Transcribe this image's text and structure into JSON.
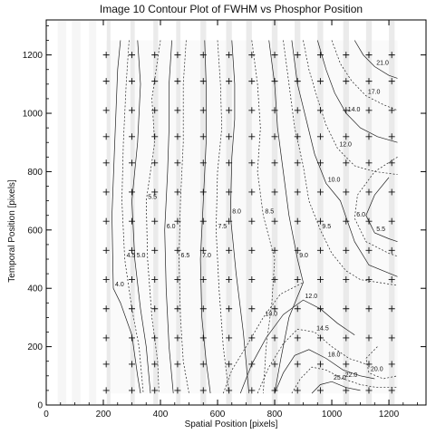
{
  "chart_data": {
    "type": "contour",
    "title": "Image 10 Contour Plot of FWHM vs Phosphor Position",
    "xlabel": "Spatial Position [pixels]",
    "ylabel": "Temporal Position [pixels]",
    "xlim": [
      0,
      1330
    ],
    "ylim": [
      0,
      1320
    ],
    "x_ticks": [
      0,
      200,
      400,
      600,
      800,
      1000,
      1200
    ],
    "y_ticks": [
      0,
      200,
      400,
      600,
      800,
      1000,
      1200
    ],
    "grid": false,
    "sample_x": [
      210,
      300,
      380,
      460,
      550,
      640,
      720,
      800,
      880,
      960,
      1050,
      1130,
      1210
    ],
    "sample_y": [
      50,
      140,
      230,
      330,
      430,
      530,
      630,
      730,
      830,
      920,
      1010,
      1110,
      1200
    ],
    "data_extent": {
      "x": [
        210,
        1230
      ],
      "y": [
        40,
        1250
      ]
    },
    "contour_levels": [
      {
        "level": "4.0",
        "style": "solid",
        "points": [
          [
            260,
            1250
          ],
          [
            250,
            1150
          ],
          [
            240,
            900
          ],
          [
            230,
            650
          ],
          [
            235,
            400
          ],
          [
            260,
            350
          ],
          [
            300,
            240
          ],
          [
            320,
            100
          ],
          [
            330,
            40
          ]
        ]
      },
      {
        "level": "4.5",
        "style": "dashed",
        "points": [
          [
            290,
            1250
          ],
          [
            280,
            1100
          ],
          [
            270,
            900
          ],
          [
            265,
            700
          ],
          [
            275,
            500
          ],
          [
            300,
            330
          ],
          [
            325,
            200
          ],
          [
            340,
            40
          ]
        ]
      },
      {
        "level": "5.0",
        "style": "solid",
        "points": [
          [
            320,
            1250
          ],
          [
            330,
            1100
          ],
          [
            320,
            900
          ],
          [
            300,
            700
          ],
          [
            310,
            500
          ],
          [
            330,
            330
          ],
          [
            350,
            200
          ],
          [
            365,
            40
          ]
        ]
      },
      {
        "level": "5.5",
        "style": "dashed",
        "points": [
          [
            400,
            1250
          ],
          [
            385,
            1150
          ],
          [
            370,
            1050
          ],
          [
            380,
            900
          ],
          [
            350,
            700
          ],
          [
            355,
            500
          ],
          [
            370,
            300
          ],
          [
            390,
            150
          ],
          [
            395,
            40
          ]
        ]
      },
      {
        "level": "6.0",
        "style": "solid",
        "points": [
          [
            440,
            1250
          ],
          [
            430,
            1100
          ],
          [
            430,
            950
          ],
          [
            425,
            800
          ],
          [
            415,
            600
          ],
          [
            420,
            400
          ],
          [
            430,
            200
          ],
          [
            445,
            40
          ]
        ]
      },
      {
        "level": "6.5",
        "style": "dashed",
        "points": [
          [
            490,
            1250
          ],
          [
            480,
            1100
          ],
          [
            480,
            900
          ],
          [
            470,
            700
          ],
          [
            465,
            500
          ],
          [
            470,
            300
          ],
          [
            480,
            150
          ],
          [
            500,
            40
          ]
        ]
      },
      {
        "level": "7.0",
        "style": "solid",
        "points": [
          [
            555,
            1250
          ],
          [
            560,
            1100
          ],
          [
            560,
            900
          ],
          [
            550,
            700
          ],
          [
            540,
            500
          ],
          [
            545,
            300
          ],
          [
            560,
            150
          ],
          [
            575,
            40
          ]
        ]
      },
      {
        "level": "7.5",
        "style": "dashed",
        "points": [
          [
            600,
            1250
          ],
          [
            610,
            1100
          ],
          [
            615,
            950
          ],
          [
            600,
            800
          ],
          [
            595,
            600
          ],
          [
            605,
            400
          ],
          [
            620,
            200
          ],
          [
            640,
            40
          ]
        ]
      },
      {
        "level": "8.0",
        "style": "solid",
        "points": [
          [
            650,
            1250
          ],
          [
            660,
            1100
          ],
          [
            660,
            980
          ],
          [
            650,
            850
          ],
          [
            645,
            650
          ],
          [
            665,
            450
          ],
          [
            690,
            250
          ],
          [
            710,
            40
          ]
        ]
      },
      {
        "level": "8.5",
        "style": "dashed",
        "points": [
          [
            720,
            1250
          ],
          [
            740,
            1100
          ],
          [
            750,
            950
          ],
          [
            740,
            800
          ],
          [
            760,
            650
          ],
          [
            800,
            500
          ],
          [
            790,
            350
          ],
          [
            770,
            200
          ],
          [
            760,
            40
          ]
        ]
      },
      {
        "level": "9.0",
        "style": "solid",
        "points": [
          [
            780,
            1250
          ],
          [
            800,
            1100
          ],
          [
            810,
            950
          ],
          [
            830,
            800
          ],
          [
            850,
            650
          ],
          [
            880,
            500
          ],
          [
            900,
            420
          ],
          [
            850,
            300
          ],
          [
            820,
            150
          ],
          [
            800,
            40
          ]
        ]
      },
      {
        "level": "9.5",
        "style": "dashed",
        "points": [
          [
            830,
            1250
          ],
          [
            850,
            1100
          ],
          [
            870,
            950
          ],
          [
            900,
            820
          ],
          [
            920,
            700
          ],
          [
            960,
            600
          ],
          [
            1000,
            520
          ],
          [
            1050,
            460
          ],
          [
            1100,
            430
          ],
          [
            1230,
            410
          ]
        ]
      },
      {
        "level": "10.0",
        "style": "solid",
        "points": [
          [
            860,
            1250
          ],
          [
            880,
            1100
          ],
          [
            910,
            980
          ],
          [
            940,
            860
          ],
          [
            980,
            760
          ],
          [
            1030,
            700
          ],
          [
            1080,
            560
          ],
          [
            1130,
            480
          ],
          [
            1230,
            440
          ]
        ]
      },
      {
        "level": "12.0",
        "style": "dashed",
        "points": [
          [
            900,
            1250
          ],
          [
            920,
            1150
          ],
          [
            950,
            1050
          ],
          [
            980,
            960
          ],
          [
            1020,
            880
          ],
          [
            1080,
            820
          ],
          [
            1150,
            800
          ],
          [
            1230,
            790
          ]
        ]
      },
      {
        "level": "14.0",
        "style": "solid",
        "points": [
          [
            950,
            1250
          ],
          [
            980,
            1150
          ],
          [
            1010,
            1070
          ],
          [
            1050,
            1000
          ],
          [
            1100,
            950
          ],
          [
            1160,
            920
          ],
          [
            1230,
            900
          ]
        ]
      },
      {
        "level": "17.0",
        "style": "dashed",
        "points": [
          [
            1000,
            1250
          ],
          [
            1030,
            1170
          ],
          [
            1070,
            1110
          ],
          [
            1120,
            1060
          ],
          [
            1180,
            1030
          ],
          [
            1230,
            1010
          ]
        ]
      },
      {
        "level": "21.0",
        "style": "solid",
        "points": [
          [
            1080,
            1250
          ],
          [
            1110,
            1200
          ],
          [
            1150,
            1160
          ],
          [
            1200,
            1130
          ],
          [
            1230,
            1120
          ]
        ]
      },
      {
        "level": "5.5",
        "style": "solid",
        "points": [
          [
            1200,
            780
          ],
          [
            1150,
            720
          ],
          [
            1120,
            650
          ],
          [
            1150,
            590
          ],
          [
            1200,
            570
          ],
          [
            1230,
            560
          ]
        ]
      },
      {
        "level": "6.0",
        "style": "dashed",
        "points": [
          [
            1230,
            850
          ],
          [
            1150,
            800
          ],
          [
            1090,
            720
          ],
          [
            1080,
            640
          ],
          [
            1120,
            560
          ],
          [
            1200,
            520
          ],
          [
            1230,
            510
          ]
        ]
      },
      {
        "level": "10.0",
        "style": "dashed",
        "points": [
          [
            620,
            40
          ],
          [
            650,
            120
          ],
          [
            700,
            200
          ],
          [
            760,
            300
          ],
          [
            820,
            380
          ],
          [
            900,
            420
          ]
        ]
      },
      {
        "level": "12.0",
        "style": "solid",
        "points": [
          [
            680,
            40
          ],
          [
            720,
            140
          ],
          [
            770,
            230
          ],
          [
            830,
            310
          ],
          [
            900,
            360
          ],
          [
            960,
            330
          ],
          [
            1020,
            280
          ],
          [
            1080,
            240
          ]
        ]
      },
      {
        "level": "14.5",
        "style": "dashed",
        "points": [
          [
            740,
            40
          ],
          [
            780,
            130
          ],
          [
            830,
            210
          ],
          [
            880,
            260
          ],
          [
            940,
            250
          ],
          [
            1000,
            200
          ],
          [
            1060,
            160
          ],
          [
            1120,
            140
          ]
        ]
      },
      {
        "level": "18.0",
        "style": "solid",
        "points": [
          [
            800,
            40
          ],
          [
            830,
            110
          ],
          [
            870,
            170
          ],
          [
            920,
            190
          ],
          [
            980,
            160
          ],
          [
            1040,
            120
          ],
          [
            1100,
            100
          ],
          [
            1150,
            90
          ]
        ]
      },
      {
        "level": "22.0",
        "style": "dashed",
        "points": [
          [
            860,
            40
          ],
          [
            890,
            90
          ],
          [
            930,
            130
          ],
          [
            980,
            120
          ],
          [
            1040,
            90
          ],
          [
            1100,
            70
          ],
          [
            1160,
            60
          ],
          [
            1230,
            60
          ]
        ]
      },
      {
        "level": "25.0",
        "style": "solid",
        "points": [
          [
            930,
            40
          ],
          [
            960,
            70
          ],
          [
            1000,
            80
          ],
          [
            1050,
            60
          ],
          [
            1100,
            50
          ]
        ]
      },
      {
        "level": "20.0",
        "style": "dashed",
        "points": [
          [
            1160,
            200
          ],
          [
            1120,
            160
          ],
          [
            1130,
            110
          ],
          [
            1180,
            90
          ],
          [
            1230,
            100
          ]
        ]
      }
    ]
  }
}
